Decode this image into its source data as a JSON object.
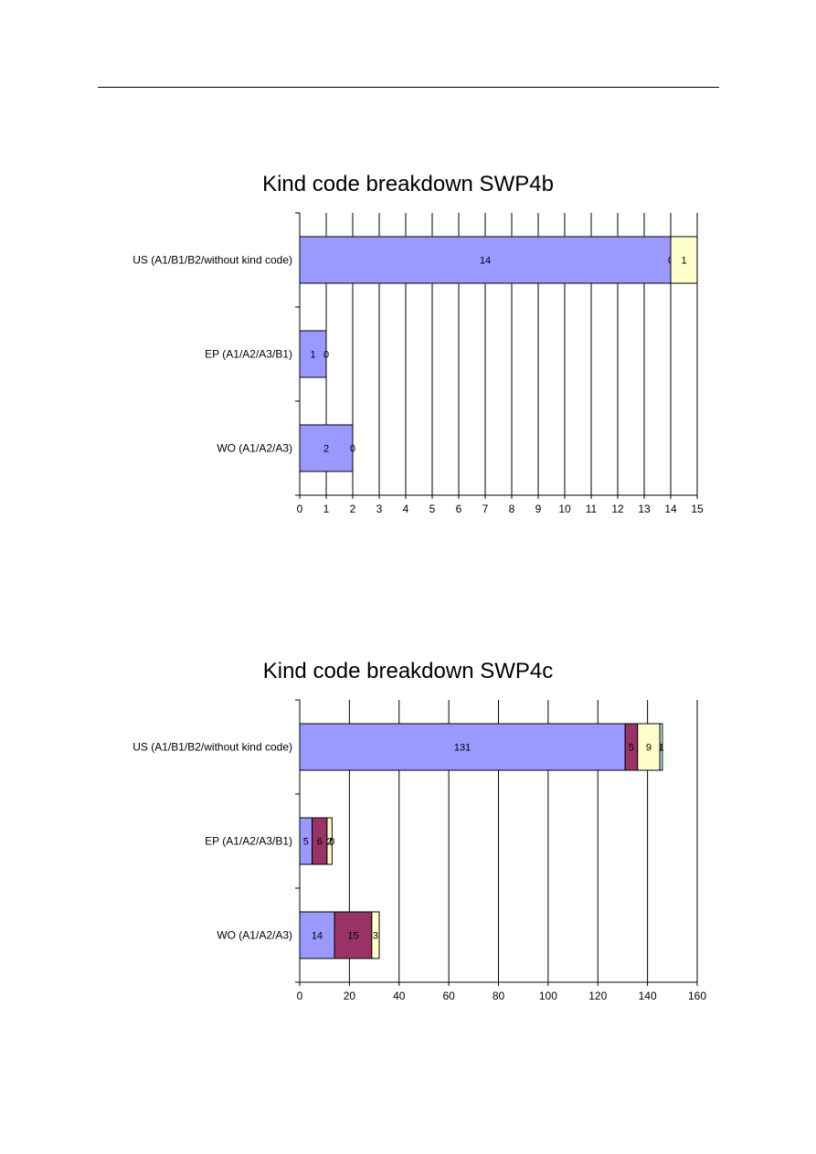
{
  "colors": {
    "series1": "#9999FF",
    "series2": "#993366",
    "series3": "#FFFFCC",
    "series4": "#CCFFFF",
    "grid": "#000000"
  },
  "chart_data": [
    {
      "type": "bar",
      "orientation": "horizontal",
      "stacked": true,
      "title": "Kind code breakdown SWP4b",
      "categories": [
        "US (A1/B1/B2/without kind code)",
        "EP (A1/A2/A3/B1)",
        "WO (A1/A2/A3)"
      ],
      "series": [
        {
          "values": [
            14,
            1,
            2
          ]
        },
        {
          "values": [
            0,
            0,
            0
          ]
        },
        {
          "values": [
            1,
            null,
            null
          ]
        }
      ],
      "xlim": [
        0,
        15
      ],
      "xticks": [
        0,
        1,
        2,
        3,
        4,
        5,
        6,
        7,
        8,
        9,
        10,
        11,
        12,
        13,
        14,
        15
      ],
      "grid": true,
      "legend": "none"
    },
    {
      "type": "bar",
      "orientation": "horizontal",
      "stacked": true,
      "title": "Kind code breakdown SWP4c",
      "categories": [
        "US (A1/B1/B2/without kind code)",
        "EP (A1/A2/A3/B1)",
        "WO (A1/A2/A3)"
      ],
      "series": [
        {
          "values": [
            131,
            5,
            14
          ]
        },
        {
          "values": [
            5,
            6,
            15
          ]
        },
        {
          "values": [
            9,
            2,
            3
          ]
        },
        {
          "values": [
            1,
            0,
            null
          ]
        }
      ],
      "xlim": [
        0,
        160
      ],
      "xticks": [
        0,
        20,
        40,
        60,
        80,
        100,
        120,
        140,
        160
      ],
      "grid": true,
      "legend": "none"
    }
  ]
}
